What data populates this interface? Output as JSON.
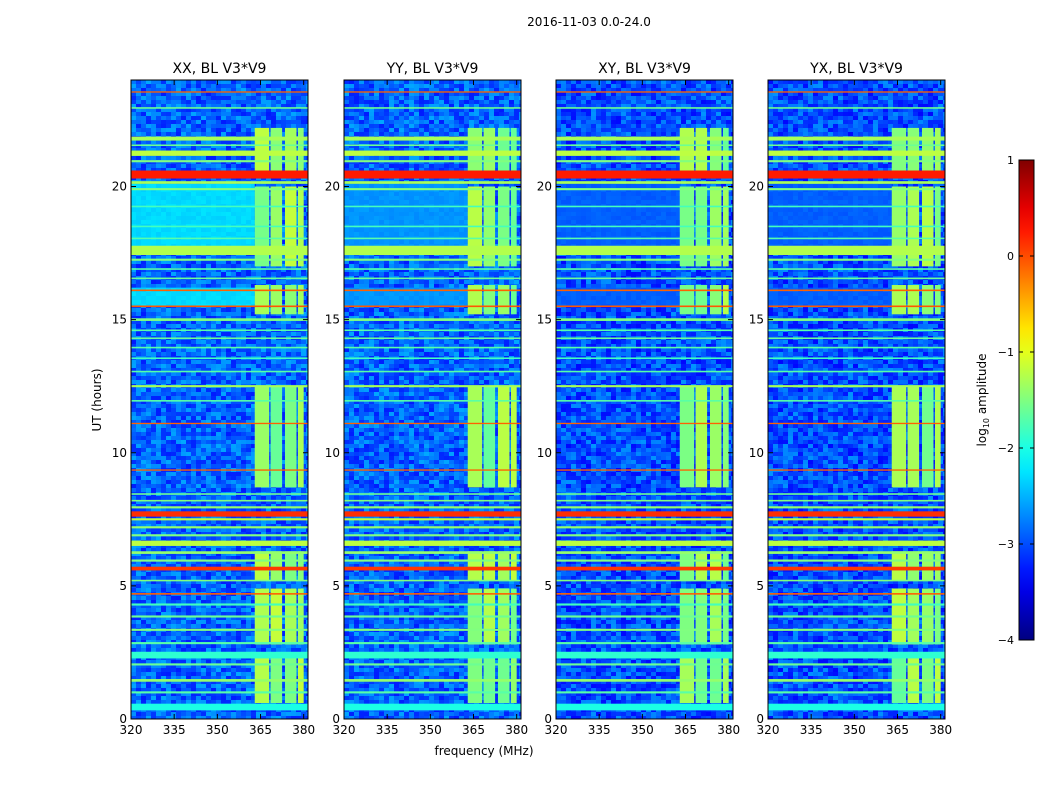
{
  "figure": {
    "suptitle": "2016-11-03 0.0-24.0",
    "xlabel": "frequency (MHz)",
    "ylabel": "UT (hours)"
  },
  "chart_data": {
    "type": "heatmap",
    "xlim": [
      320,
      381.5
    ],
    "ylim": [
      0,
      24
    ],
    "xticks": [
      320,
      335,
      350,
      365,
      380
    ],
    "yticks": [
      0,
      5,
      10,
      15,
      20
    ],
    "panels": [
      {
        "title": "XX, BL V3*V9",
        "baseline": -2.9,
        "lowband_level": -2.2
      },
      {
        "title": "YY, BL V3*V9",
        "baseline": -2.9,
        "lowband_level": -2.6
      },
      {
        "title": "XY, BL V3*V9",
        "baseline": -3.0,
        "lowband_level": -2.9
      },
      {
        "title": "YX, BL V3*V9",
        "baseline": -3.0,
        "lowband_level": -2.9
      }
    ],
    "colorbar": {
      "label": "log10 amplitude",
      "label_main": "log",
      "label_sub": "10",
      "label_rest": " amplitude",
      "range": [
        -4,
        1
      ],
      "ticks": [
        1,
        0,
        -1,
        -2,
        -3,
        -4
      ],
      "tick_labels": [
        "1",
        "0",
        "−1",
        "−2",
        "−3",
        "−4"
      ],
      "colormap": "jet"
    },
    "rfi_band_mhz": [
      363,
      380
    ],
    "rfi_columns_mhz": [
      [
        363,
        368
      ],
      [
        368.5,
        372.5
      ],
      [
        373.5,
        377.5
      ],
      [
        378,
        380
      ]
    ],
    "rfi_active_hours": [
      [
        0.6,
        2.3
      ],
      [
        2.8,
        4.9
      ],
      [
        5.2,
        6.3
      ],
      [
        8.7,
        12.5
      ],
      [
        15.2,
        16.3
      ],
      [
        17.0,
        20.0
      ],
      [
        20.6,
        22.2
      ]
    ],
    "rfi_level": -1.4,
    "full_band_lines": [
      {
        "t": 0.45,
        "w": 0.25,
        "level": -2.0
      },
      {
        "t": 1.0,
        "w": 0.08,
        "level": -1.7
      },
      {
        "t": 1.45,
        "w": 0.1,
        "level": -1.4
      },
      {
        "t": 2.05,
        "w": 0.08,
        "level": -1.6
      },
      {
        "t": 2.4,
        "w": 0.25,
        "level": -1.9
      },
      {
        "t": 2.85,
        "w": 0.08,
        "level": -1.7
      },
      {
        "t": 3.35,
        "w": 0.08,
        "level": -1.5
      },
      {
        "t": 3.85,
        "w": 0.08,
        "level": -1.6
      },
      {
        "t": 4.3,
        "w": 0.08,
        "level": -1.8
      },
      {
        "t": 4.7,
        "w": 0.06,
        "level": -0.1
      },
      {
        "t": 5.2,
        "w": 0.06,
        "level": -1.5
      },
      {
        "t": 5.65,
        "w": 0.14,
        "level": 0.1
      },
      {
        "t": 5.95,
        "w": 0.08,
        "level": -1.5
      },
      {
        "t": 6.25,
        "w": 0.1,
        "level": -1.4
      },
      {
        "t": 6.6,
        "w": 0.2,
        "level": -1.2
      },
      {
        "t": 6.9,
        "w": 0.08,
        "level": -1.5
      },
      {
        "t": 7.2,
        "w": 0.08,
        "level": -1.4
      },
      {
        "t": 7.5,
        "w": 0.08,
        "level": -1.2
      },
      {
        "t": 7.7,
        "w": 0.2,
        "level": 0.15
      },
      {
        "t": 7.95,
        "w": 0.08,
        "level": -1.4
      },
      {
        "t": 8.2,
        "w": 0.06,
        "level": -1.5
      },
      {
        "t": 8.45,
        "w": 0.06,
        "level": -1.6
      },
      {
        "t": 9.35,
        "w": 0.05,
        "level": -0.1
      },
      {
        "t": 11.1,
        "w": 0.05,
        "level": -0.1
      },
      {
        "t": 11.95,
        "w": 0.06,
        "level": -1.7
      },
      {
        "t": 12.5,
        "w": 0.08,
        "level": -1.3
      },
      {
        "t": 13.05,
        "w": 0.06,
        "level": -1.7
      },
      {
        "t": 13.55,
        "w": 0.06,
        "level": -1.8
      },
      {
        "t": 13.95,
        "w": 0.06,
        "level": -1.7
      },
      {
        "t": 14.3,
        "w": 0.06,
        "level": -1.6
      },
      {
        "t": 14.6,
        "w": 0.06,
        "level": -1.7
      },
      {
        "t": 15.0,
        "w": 0.1,
        "level": -1.5
      },
      {
        "t": 15.5,
        "w": 0.06,
        "level": -0.05
      },
      {
        "t": 16.1,
        "w": 0.06,
        "level": -0.1
      },
      {
        "t": 16.55,
        "w": 0.06,
        "level": -1.6
      },
      {
        "t": 16.9,
        "w": 0.06,
        "level": -1.7
      },
      {
        "t": 17.25,
        "w": 0.08,
        "level": -1.5
      },
      {
        "t": 17.6,
        "w": 0.35,
        "level": -1.25
      },
      {
        "t": 18.05,
        "w": 0.06,
        "level": -1.7
      },
      {
        "t": 18.5,
        "w": 0.06,
        "level": -1.8
      },
      {
        "t": 19.25,
        "w": 0.06,
        "level": -1.8
      },
      {
        "t": 19.9,
        "w": 0.08,
        "level": -1.5
      },
      {
        "t": 20.15,
        "w": 0.1,
        "level": -1.3
      },
      {
        "t": 20.45,
        "w": 0.3,
        "level": 0.25
      },
      {
        "t": 20.95,
        "w": 0.08,
        "level": -1.5
      },
      {
        "t": 21.25,
        "w": 0.2,
        "level": -1.2
      },
      {
        "t": 21.55,
        "w": 0.06,
        "level": -1.6
      },
      {
        "t": 21.8,
        "w": 0.15,
        "level": -1.3
      },
      {
        "t": 22.95,
        "w": 0.06,
        "level": -1.6
      },
      {
        "t": 23.55,
        "w": 0.05,
        "level": -0.1
      }
    ]
  }
}
